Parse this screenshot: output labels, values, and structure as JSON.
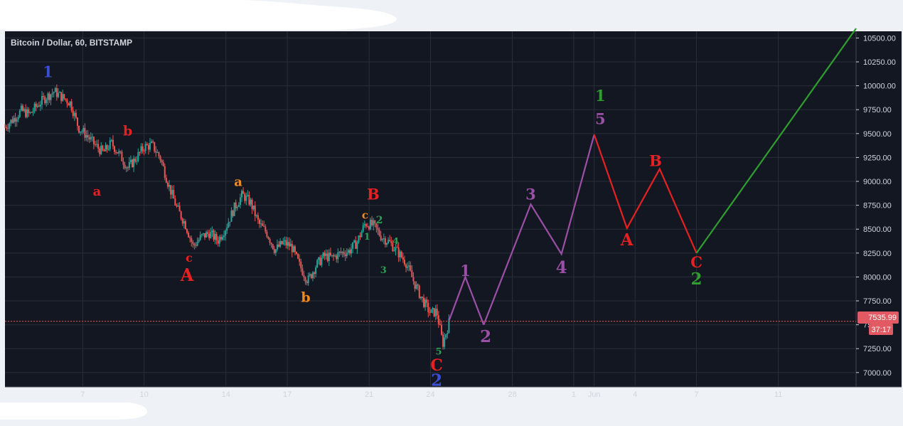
{
  "chart_title": "Bitcoin / Dollar, 60, BITSTAMP",
  "colors": {
    "background": "#131722",
    "grid": "#2a2e39",
    "candle_up": "#26a69a",
    "candle_down": "#ef5350",
    "price_line": "#ef5350",
    "price_tag": "#e15a63",
    "wave_purple": "#9c4fa6",
    "wave_red": "#e52121",
    "wave_green": "#2f9e2f",
    "label_blue": "#3a4fd1",
    "label_orange": "#f28a21",
    "label_small_green": "#2f9e52"
  },
  "chart_data": {
    "type": "line",
    "ylim": [
      6850,
      10570
    ],
    "xlim_day": [
      3.2,
      44.8
    ],
    "y_ticks": [
      7000,
      7250,
      7500,
      7750,
      8000,
      8250,
      8500,
      8750,
      9000,
      9250,
      9500,
      9750,
      10000,
      10250,
      10500
    ],
    "y_tick_labels": [
      "7000.00",
      "7250.00",
      "7500.00",
      "7750.00",
      "8000.00",
      "8250.00",
      "8500.00",
      "8750.00",
      "9000.00",
      "9250.00",
      "9500.00",
      "9750.00",
      "10000.00",
      "10250.00",
      "10500.00"
    ],
    "x_ticks": [
      {
        "day": 7,
        "label": "7"
      },
      {
        "day": 10,
        "label": "10"
      },
      {
        "day": 14,
        "label": "14"
      },
      {
        "day": 17,
        "label": "17"
      },
      {
        "day": 21,
        "label": "21"
      },
      {
        "day": 24,
        "label": "24"
      },
      {
        "day": 28,
        "label": "28"
      },
      {
        "day": 31,
        "label": "1"
      },
      {
        "day": 32,
        "label": "Jun"
      },
      {
        "day": 34,
        "label": "4"
      },
      {
        "day": 37,
        "label": "7"
      },
      {
        "day": 41,
        "label": "11"
      }
    ],
    "current_price": 7535.99,
    "current_price_label": "7535.99",
    "countdown": "37:17",
    "price_path": [
      [
        3.2,
        9570
      ],
      [
        3.6,
        9650
      ],
      [
        4.0,
        9740
      ],
      [
        4.4,
        9700
      ],
      [
        4.8,
        9800
      ],
      [
        5.2,
        9880
      ],
      [
        5.6,
        9940
      ],
      [
        6.0,
        9880
      ],
      [
        6.4,
        9820
      ],
      [
        6.8,
        9560
      ],
      [
        7.2,
        9480
      ],
      [
        7.6,
        9380
      ],
      [
        8.0,
        9300
      ],
      [
        8.4,
        9400
      ],
      [
        8.8,
        9280
      ],
      [
        9.2,
        9140
      ],
      [
        9.6,
        9240
      ],
      [
        10.0,
        9360
      ],
      [
        10.4,
        9380
      ],
      [
        10.8,
        9240
      ],
      [
        11.2,
        8960
      ],
      [
        11.6,
        8720
      ],
      [
        12.0,
        8560
      ],
      [
        12.4,
        8320
      ],
      [
        12.8,
        8420
      ],
      [
        13.2,
        8460
      ],
      [
        13.6,
        8380
      ],
      [
        14.0,
        8520
      ],
      [
        14.4,
        8720
      ],
      [
        14.8,
        8860
      ],
      [
        15.2,
        8780
      ],
      [
        15.6,
        8560
      ],
      [
        16.0,
        8460
      ],
      [
        16.4,
        8280
      ],
      [
        16.8,
        8360
      ],
      [
        17.2,
        8320
      ],
      [
        17.6,
        8120
      ],
      [
        18.0,
        7960
      ],
      [
        18.4,
        8120
      ],
      [
        18.8,
        8220
      ],
      [
        19.2,
        8200
      ],
      [
        19.6,
        8250
      ],
      [
        20.0,
        8270
      ],
      [
        20.4,
        8360
      ],
      [
        20.8,
        8560
      ],
      [
        21.2,
        8540
      ],
      [
        21.6,
        8420
      ],
      [
        22.0,
        8360
      ],
      [
        22.4,
        8260
      ],
      [
        22.8,
        8150
      ],
      [
        23.2,
        7940
      ],
      [
        23.6,
        7760
      ],
      [
        24.0,
        7620
      ],
      [
        24.3,
        7640
      ],
      [
        24.6,
        7300
      ],
      [
        24.9,
        7520
      ]
    ],
    "series": [
      {
        "name": "1 2",
        "color": "wave_purple",
        "points": [
          [
            24.9,
            7540
          ],
          [
            25.7,
            8000
          ],
          [
            26.6,
            7500
          ]
        ]
      },
      {
        "name": "3 4 5",
        "color": "wave_purple",
        "points": [
          [
            26.6,
            7500
          ],
          [
            28.9,
            8760
          ],
          [
            30.4,
            8240
          ],
          [
            32.0,
            9490
          ]
        ]
      },
      {
        "name": "A B C",
        "color": "wave_red",
        "points": [
          [
            32.0,
            9490
          ],
          [
            33.6,
            8510
          ],
          [
            35.2,
            9130
          ],
          [
            37.0,
            8250
          ]
        ]
      },
      {
        "name": "1 2 ahead",
        "color": "wave_green",
        "points": [
          [
            37.0,
            8250
          ],
          [
            44.8,
            10600
          ]
        ]
      }
    ],
    "annotations": [
      {
        "text": "1",
        "day": 5.3,
        "price": 10090,
        "color": "label_blue",
        "size": 21
      },
      {
        "text": "b",
        "day": 9.2,
        "price": 9480,
        "color": "wave_red",
        "size": 19
      },
      {
        "text": "a",
        "day": 7.7,
        "price": 8850,
        "color": "wave_red",
        "size": 18
      },
      {
        "text": "a",
        "day": 14.6,
        "price": 8950,
        "color": "label_orange",
        "size": 18
      },
      {
        "text": "c",
        "day": 12.2,
        "price": 8160,
        "color": "wave_red",
        "size": 16
      },
      {
        "text": "A",
        "day": 12.1,
        "price": 7960,
        "color": "wave_red",
        "size": 24
      },
      {
        "text": "b",
        "day": 17.9,
        "price": 7740,
        "color": "label_orange",
        "size": 19
      },
      {
        "text": "B",
        "day": 21.2,
        "price": 8810,
        "color": "wave_red",
        "size": 21
      },
      {
        "text": "c",
        "day": 20.8,
        "price": 8610,
        "color": "label_orange",
        "size": 15
      },
      {
        "text": "2",
        "day": 21.5,
        "price": 8560,
        "color": "label_small_green",
        "size": 14
      },
      {
        "text": "1",
        "day": 20.9,
        "price": 8390,
        "color": "label_small_green",
        "size": 13
      },
      {
        "text": "4",
        "day": 22.3,
        "price": 8340,
        "color": "label_small_green",
        "size": 13
      },
      {
        "text": "3",
        "day": 21.7,
        "price": 8040,
        "color": "label_small_green",
        "size": 13
      },
      {
        "text": "5",
        "day": 24.4,
        "price": 7190,
        "color": "label_small_green",
        "size": 13
      },
      {
        "text": "C",
        "day": 24.3,
        "price": 7020,
        "color": "wave_red",
        "size": 22
      },
      {
        "text": "2",
        "day": 24.3,
        "price": 6860,
        "color": "label_blue",
        "size": 23
      },
      {
        "text": "1",
        "day": 25.7,
        "price": 8010,
        "color": "wave_purple",
        "size": 21
      },
      {
        "text": "2",
        "day": 26.7,
        "price": 7320,
        "color": "wave_purple",
        "size": 23
      },
      {
        "text": "3",
        "day": 28.9,
        "price": 8810,
        "color": "wave_purple",
        "size": 21
      },
      {
        "text": "4",
        "day": 30.4,
        "price": 8040,
        "color": "wave_purple",
        "size": 23
      },
      {
        "text": "1",
        "day": 32.3,
        "price": 9840,
        "color": "wave_green",
        "size": 21
      },
      {
        "text": "5",
        "day": 32.3,
        "price": 9600,
        "color": "wave_purple",
        "size": 21
      },
      {
        "text": "B",
        "day": 35.0,
        "price": 9160,
        "color": "wave_red",
        "size": 21
      },
      {
        "text": "A",
        "day": 33.6,
        "price": 8330,
        "color": "wave_red",
        "size": 23
      },
      {
        "text": "C",
        "day": 37.0,
        "price": 8100,
        "color": "wave_red",
        "size": 21
      },
      {
        "text": "2",
        "day": 37.0,
        "price": 7920,
        "color": "wave_green",
        "size": 23
      }
    ]
  }
}
